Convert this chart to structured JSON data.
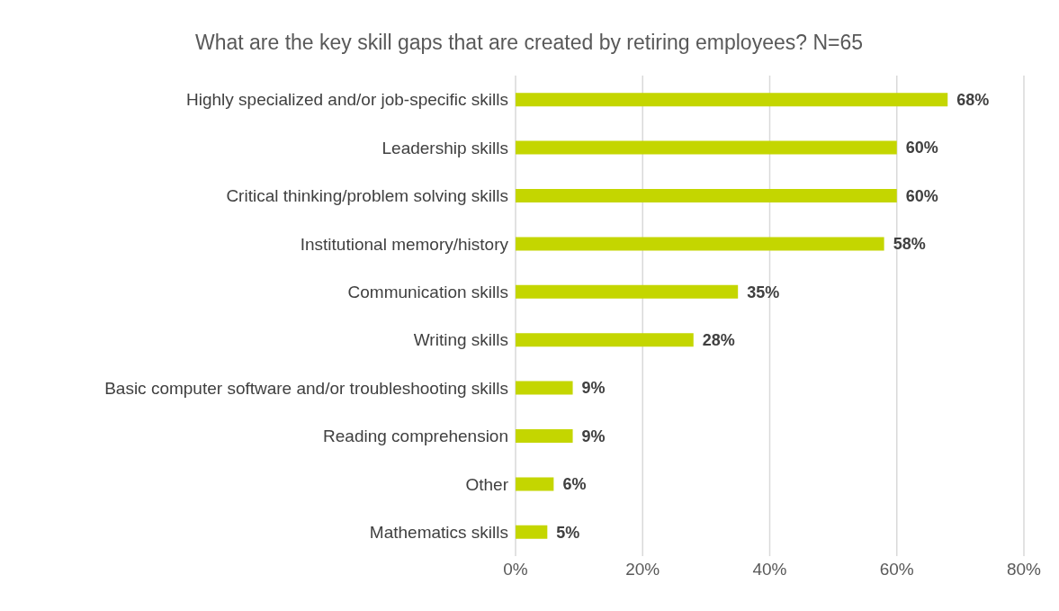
{
  "chart_data": {
    "type": "bar",
    "orientation": "horizontal",
    "title": "What are the key skill gaps that are created by retiring employees? N=65",
    "categories": [
      "Highly specialized and/or job-specific skills",
      "Leadership skills",
      "Critical thinking/problem solving skills",
      "Institutional memory/history",
      "Communication skills",
      "Writing skills",
      "Basic computer software and/or troubleshooting skills",
      "Reading comprehension",
      "Other",
      "Mathematics skills"
    ],
    "values": [
      68,
      60,
      60,
      58,
      35,
      28,
      9,
      9,
      6,
      5
    ],
    "value_labels": [
      "68%",
      "60%",
      "60%",
      "58%",
      "35%",
      "28%",
      "9%",
      "9%",
      "6%",
      "5%"
    ],
    "color": "#c4d600",
    "xlim": [
      0,
      80
    ],
    "xticks": [
      {
        "value": 0,
        "label": "0%"
      },
      {
        "value": 20,
        "label": "20%"
      },
      {
        "value": 40,
        "label": "40%"
      },
      {
        "value": 60,
        "label": "60%"
      },
      {
        "value": 80,
        "label": "80%"
      }
    ],
    "grid": "x"
  }
}
